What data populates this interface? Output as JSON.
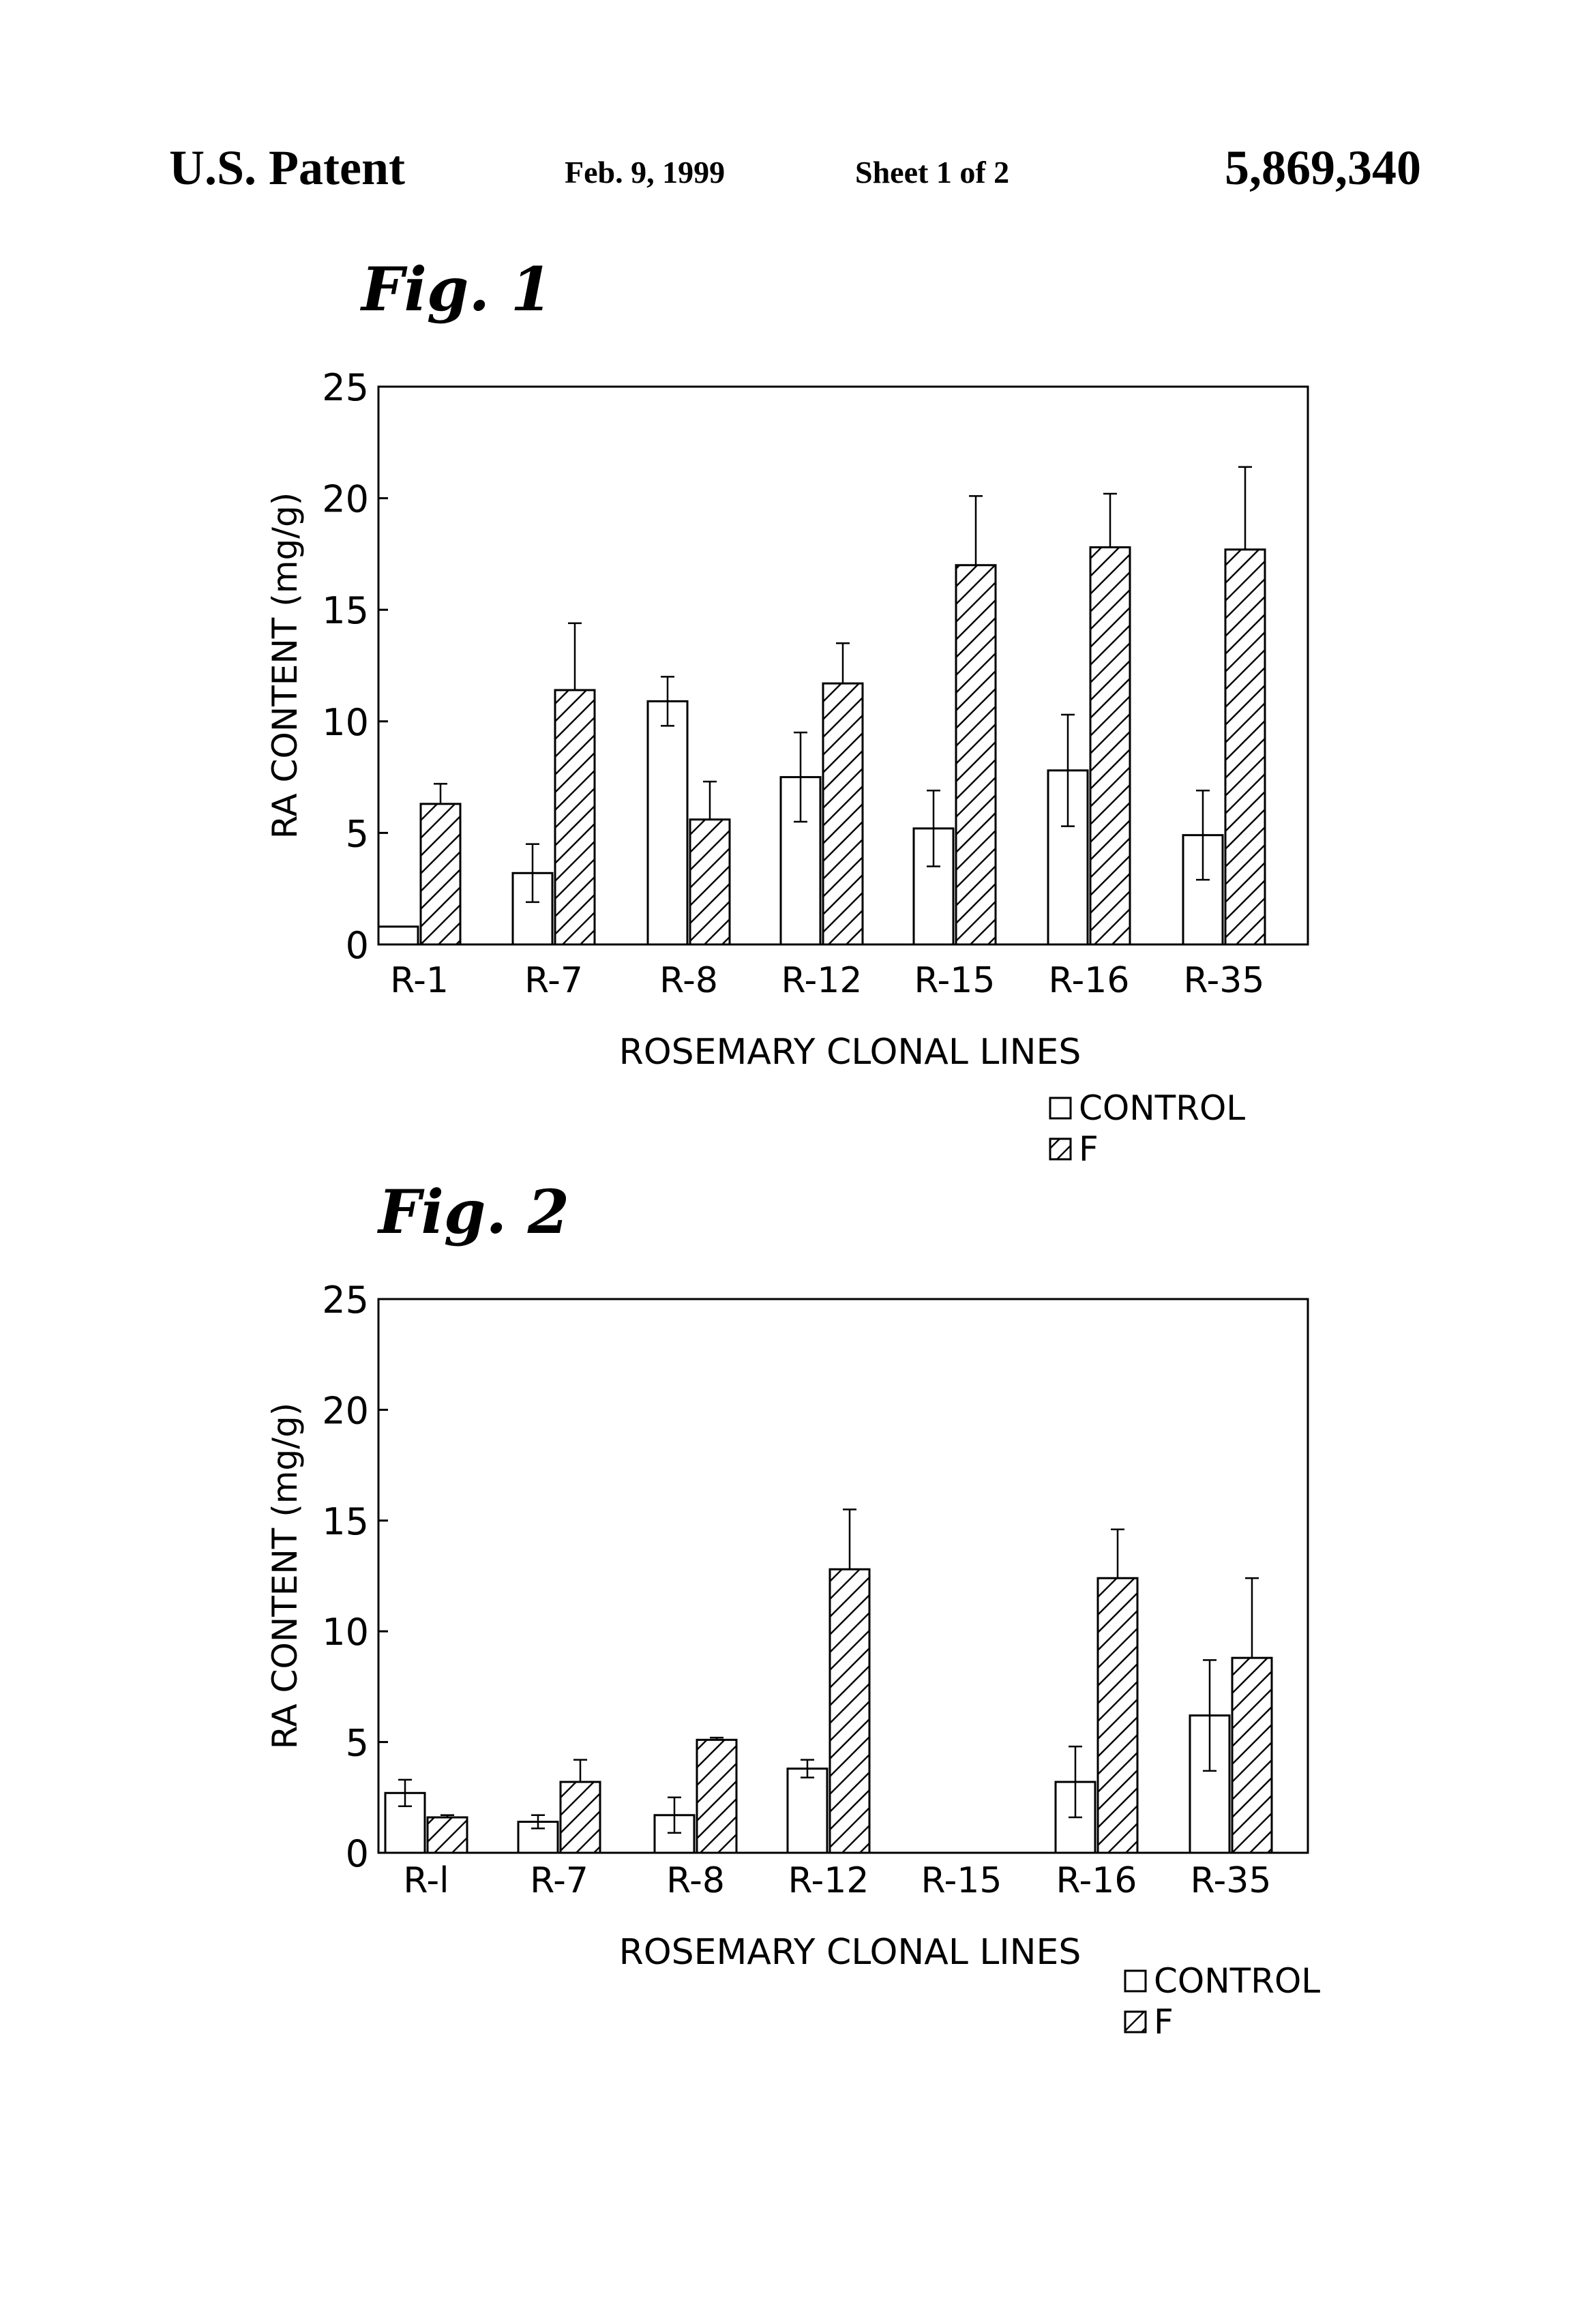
{
  "header": {
    "left": "U.S. Patent",
    "date": "Feb. 9, 1999",
    "sheet": "Sheet 1 of 2",
    "number": "5,869,340"
  },
  "chart_data": [
    {
      "type": "bar",
      "title": "Fig. 1",
      "xlabel": "ROSEMARY CLONAL LINES",
      "ylabel": "RA CONTENT (mg/g)",
      "ylim": [
        0,
        25
      ],
      "yticks": [
        0,
        5,
        10,
        15,
        20,
        25
      ],
      "categories": [
        "R-1",
        "R-7",
        "R-8",
        "R-12",
        "R-15",
        "R-16",
        "R-35"
      ],
      "series": [
        {
          "name": "CONTROL",
          "pattern": "open",
          "values": [
            0.8,
            3.2,
            10.9,
            7.5,
            5.2,
            7.8,
            4.9
          ],
          "errors": [
            0,
            1.3,
            1.1,
            2.0,
            1.7,
            2.5,
            2.0
          ]
        },
        {
          "name": "F",
          "pattern": "hatched",
          "values": [
            6.3,
            11.4,
            5.6,
            11.7,
            17.0,
            17.8,
            17.7
          ],
          "errors": [
            0.9,
            3.0,
            1.7,
            1.8,
            3.1,
            2.4,
            3.7
          ]
        }
      ],
      "legend": [
        "CONTROL",
        "F"
      ],
      "legend_position": "bottom-right"
    },
    {
      "type": "bar",
      "title": "Fig. 2",
      "xlabel": "ROSEMARY CLONAL LINES",
      "ylabel": "RA CONTENT (mg/g)",
      "ylim": [
        0,
        25
      ],
      "yticks": [
        0,
        5,
        10,
        15,
        20,
        25
      ],
      "categories": [
        "R-l",
        "R-7",
        "R-8",
        "R-12",
        "R-15",
        "R-16",
        "R-35"
      ],
      "series": [
        {
          "name": "CONTROL",
          "pattern": "open",
          "values": [
            2.7,
            1.4,
            1.7,
            3.8,
            null,
            3.2,
            6.2
          ],
          "errors": [
            0.6,
            0.3,
            0.8,
            0.4,
            null,
            1.6,
            2.5
          ]
        },
        {
          "name": "F",
          "pattern": "hatched",
          "values": [
            1.6,
            3.2,
            5.1,
            12.8,
            null,
            12.4,
            8.8
          ],
          "errors": [
            0.1,
            1.0,
            0.1,
            2.7,
            null,
            2.2,
            3.6
          ]
        }
      ],
      "legend": [
        "CONTROL",
        "F"
      ],
      "legend_position": "bottom-right"
    }
  ]
}
